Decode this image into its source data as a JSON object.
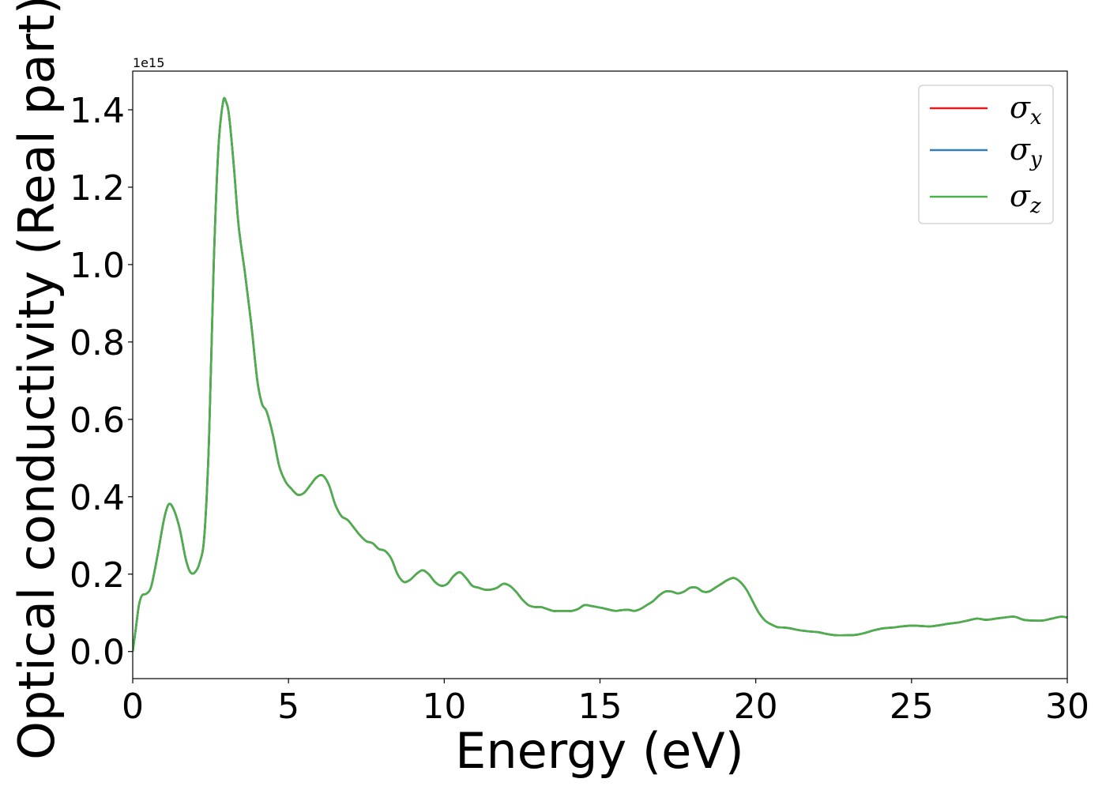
{
  "chart_data": {
    "type": "line",
    "xlabel": "Energy (eV)",
    "ylabel": "Optical conductivity (Real part)",
    "y_offset_text": "1e15",
    "xlim": [
      0,
      30
    ],
    "ylim": [
      -0.07,
      1.5
    ],
    "xticks": [
      0,
      5,
      10,
      15,
      20,
      25,
      30
    ],
    "xtick_labels": [
      "0",
      "5",
      "10",
      "15",
      "20",
      "25",
      "30"
    ],
    "yticks": [
      0.0,
      0.2,
      0.4,
      0.6,
      0.8,
      1.0,
      1.2,
      1.4
    ],
    "ytick_labels": [
      "0.0",
      "0.2",
      "0.4",
      "0.6",
      "0.8",
      "1.0",
      "1.2",
      "1.4"
    ],
    "grid": false,
    "legend_position": "top-right",
    "series": [
      {
        "name": "σx",
        "label_base": "σ",
        "label_sub": "x",
        "color": "#e41a1c"
      },
      {
        "name": "σy",
        "label_base": "σ",
        "label_sub": "y",
        "color": "#377eb8"
      },
      {
        "name": "σz",
        "label_base": "σ",
        "label_sub": "z",
        "color": "#4daf4a"
      }
    ],
    "x": [
      0,
      0.1,
      0.2,
      0.3,
      0.45,
      0.6,
      0.8,
      1.0,
      1.15,
      1.3,
      1.5,
      1.7,
      1.85,
      2.0,
      2.15,
      2.3,
      2.45,
      2.6,
      2.75,
      2.9,
      3.0,
      3.1,
      3.25,
      3.4,
      3.6,
      3.8,
      4.0,
      4.15,
      4.3,
      4.5,
      4.7,
      4.9,
      5.1,
      5.3,
      5.5,
      5.7,
      5.9,
      6.1,
      6.3,
      6.5,
      6.7,
      6.9,
      7.1,
      7.3,
      7.5,
      7.7,
      7.9,
      8.1,
      8.3,
      8.5,
      8.7,
      8.9,
      9.1,
      9.3,
      9.5,
      9.7,
      9.9,
      10.1,
      10.3,
      10.5,
      10.7,
      10.9,
      11.1,
      11.3,
      11.5,
      11.7,
      11.9,
      12.1,
      12.3,
      12.5,
      12.7,
      12.9,
      13.1,
      13.3,
      13.5,
      13.7,
      13.9,
      14.1,
      14.3,
      14.5,
      14.7,
      14.9,
      15.1,
      15.3,
      15.5,
      15.7,
      15.9,
      16.1,
      16.3,
      16.5,
      16.7,
      16.9,
      17.1,
      17.3,
      17.5,
      17.7,
      17.9,
      18.1,
      18.3,
      18.5,
      18.7,
      18.9,
      19.1,
      19.3,
      19.5,
      19.7,
      19.9,
      20.1,
      20.3,
      20.5,
      20.7,
      20.9,
      21.1,
      21.4,
      21.7,
      22.0,
      22.3,
      22.6,
      22.9,
      23.2,
      23.5,
      23.8,
      24.1,
      24.4,
      24.7,
      25.0,
      25.3,
      25.6,
      25.9,
      26.2,
      26.5,
      26.8,
      27.1,
      27.4,
      27.7,
      28.0,
      28.3,
      28.6,
      28.9,
      29.2,
      29.5,
      29.8,
      30.0
    ],
    "y": [
      0.0,
      0.06,
      0.12,
      0.145,
      0.15,
      0.17,
      0.25,
      0.34,
      0.38,
      0.37,
      0.32,
      0.24,
      0.205,
      0.205,
      0.23,
      0.3,
      0.55,
      1.0,
      1.3,
      1.42,
      1.42,
      1.38,
      1.25,
      1.1,
      0.98,
      0.85,
      0.7,
      0.64,
      0.62,
      0.56,
      0.48,
      0.44,
      0.42,
      0.405,
      0.41,
      0.43,
      0.45,
      0.455,
      0.43,
      0.38,
      0.35,
      0.34,
      0.32,
      0.3,
      0.285,
      0.28,
      0.265,
      0.26,
      0.24,
      0.2,
      0.18,
      0.185,
      0.2,
      0.21,
      0.2,
      0.18,
      0.17,
      0.175,
      0.195,
      0.205,
      0.19,
      0.17,
      0.165,
      0.16,
      0.16,
      0.165,
      0.175,
      0.17,
      0.155,
      0.135,
      0.12,
      0.115,
      0.115,
      0.11,
      0.105,
      0.105,
      0.105,
      0.105,
      0.11,
      0.12,
      0.118,
      0.115,
      0.112,
      0.108,
      0.105,
      0.107,
      0.108,
      0.105,
      0.11,
      0.12,
      0.13,
      0.145,
      0.155,
      0.155,
      0.15,
      0.155,
      0.165,
      0.165,
      0.155,
      0.155,
      0.165,
      0.175,
      0.185,
      0.19,
      0.18,
      0.16,
      0.13,
      0.1,
      0.08,
      0.07,
      0.063,
      0.062,
      0.06,
      0.055,
      0.052,
      0.05,
      0.045,
      0.042,
      0.042,
      0.043,
      0.048,
      0.055,
      0.06,
      0.062,
      0.065,
      0.067,
      0.066,
      0.065,
      0.068,
      0.072,
      0.075,
      0.08,
      0.085,
      0.082,
      0.085,
      0.088,
      0.09,
      0.082,
      0.08,
      0.08,
      0.085,
      0.09,
      0.088
    ]
  }
}
